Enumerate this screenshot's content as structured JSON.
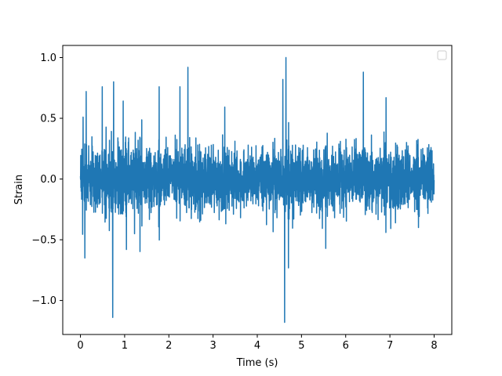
{
  "chart_data": {
    "type": "line",
    "title": "",
    "xlabel": "Time (s)",
    "ylabel": "Strain",
    "xlim": [
      -0.4,
      8.4
    ],
    "ylim": [
      -1.28,
      1.1
    ],
    "xticks": [
      0,
      1,
      2,
      3,
      4,
      5,
      6,
      7,
      8
    ],
    "xtick_labels": [
      "0",
      "1",
      "2",
      "3",
      "4",
      "5",
      "6",
      "7",
      "8"
    ],
    "yticks": [
      -1.0,
      -0.5,
      0.0,
      0.5,
      1.0
    ],
    "ytick_labels": [
      "−1.0",
      "−0.5",
      "0.0",
      "0.5",
      "1.0"
    ],
    "grid": false,
    "legend": {
      "placement": "top-right",
      "entries": []
    },
    "series": [
      {
        "color": "#1f77b4",
        "x_range": [
          0,
          8
        ],
        "note_peaks": [
          {
            "x": 0.06,
            "y": 0.51
          },
          {
            "x": 0.1,
            "y": -0.65
          },
          {
            "x": 0.13,
            "y": 0.72
          },
          {
            "x": 0.75,
            "y": 0.8
          },
          {
            "x": 0.73,
            "y": -1.14
          },
          {
            "x": 2.43,
            "y": 0.92
          },
          {
            "x": 4.58,
            "y": 0.82
          },
          {
            "x": 4.65,
            "y": 1.0
          },
          {
            "x": 4.62,
            "y": -1.18
          },
          {
            "x": 6.4,
            "y": 0.88
          }
        ]
      }
    ]
  }
}
